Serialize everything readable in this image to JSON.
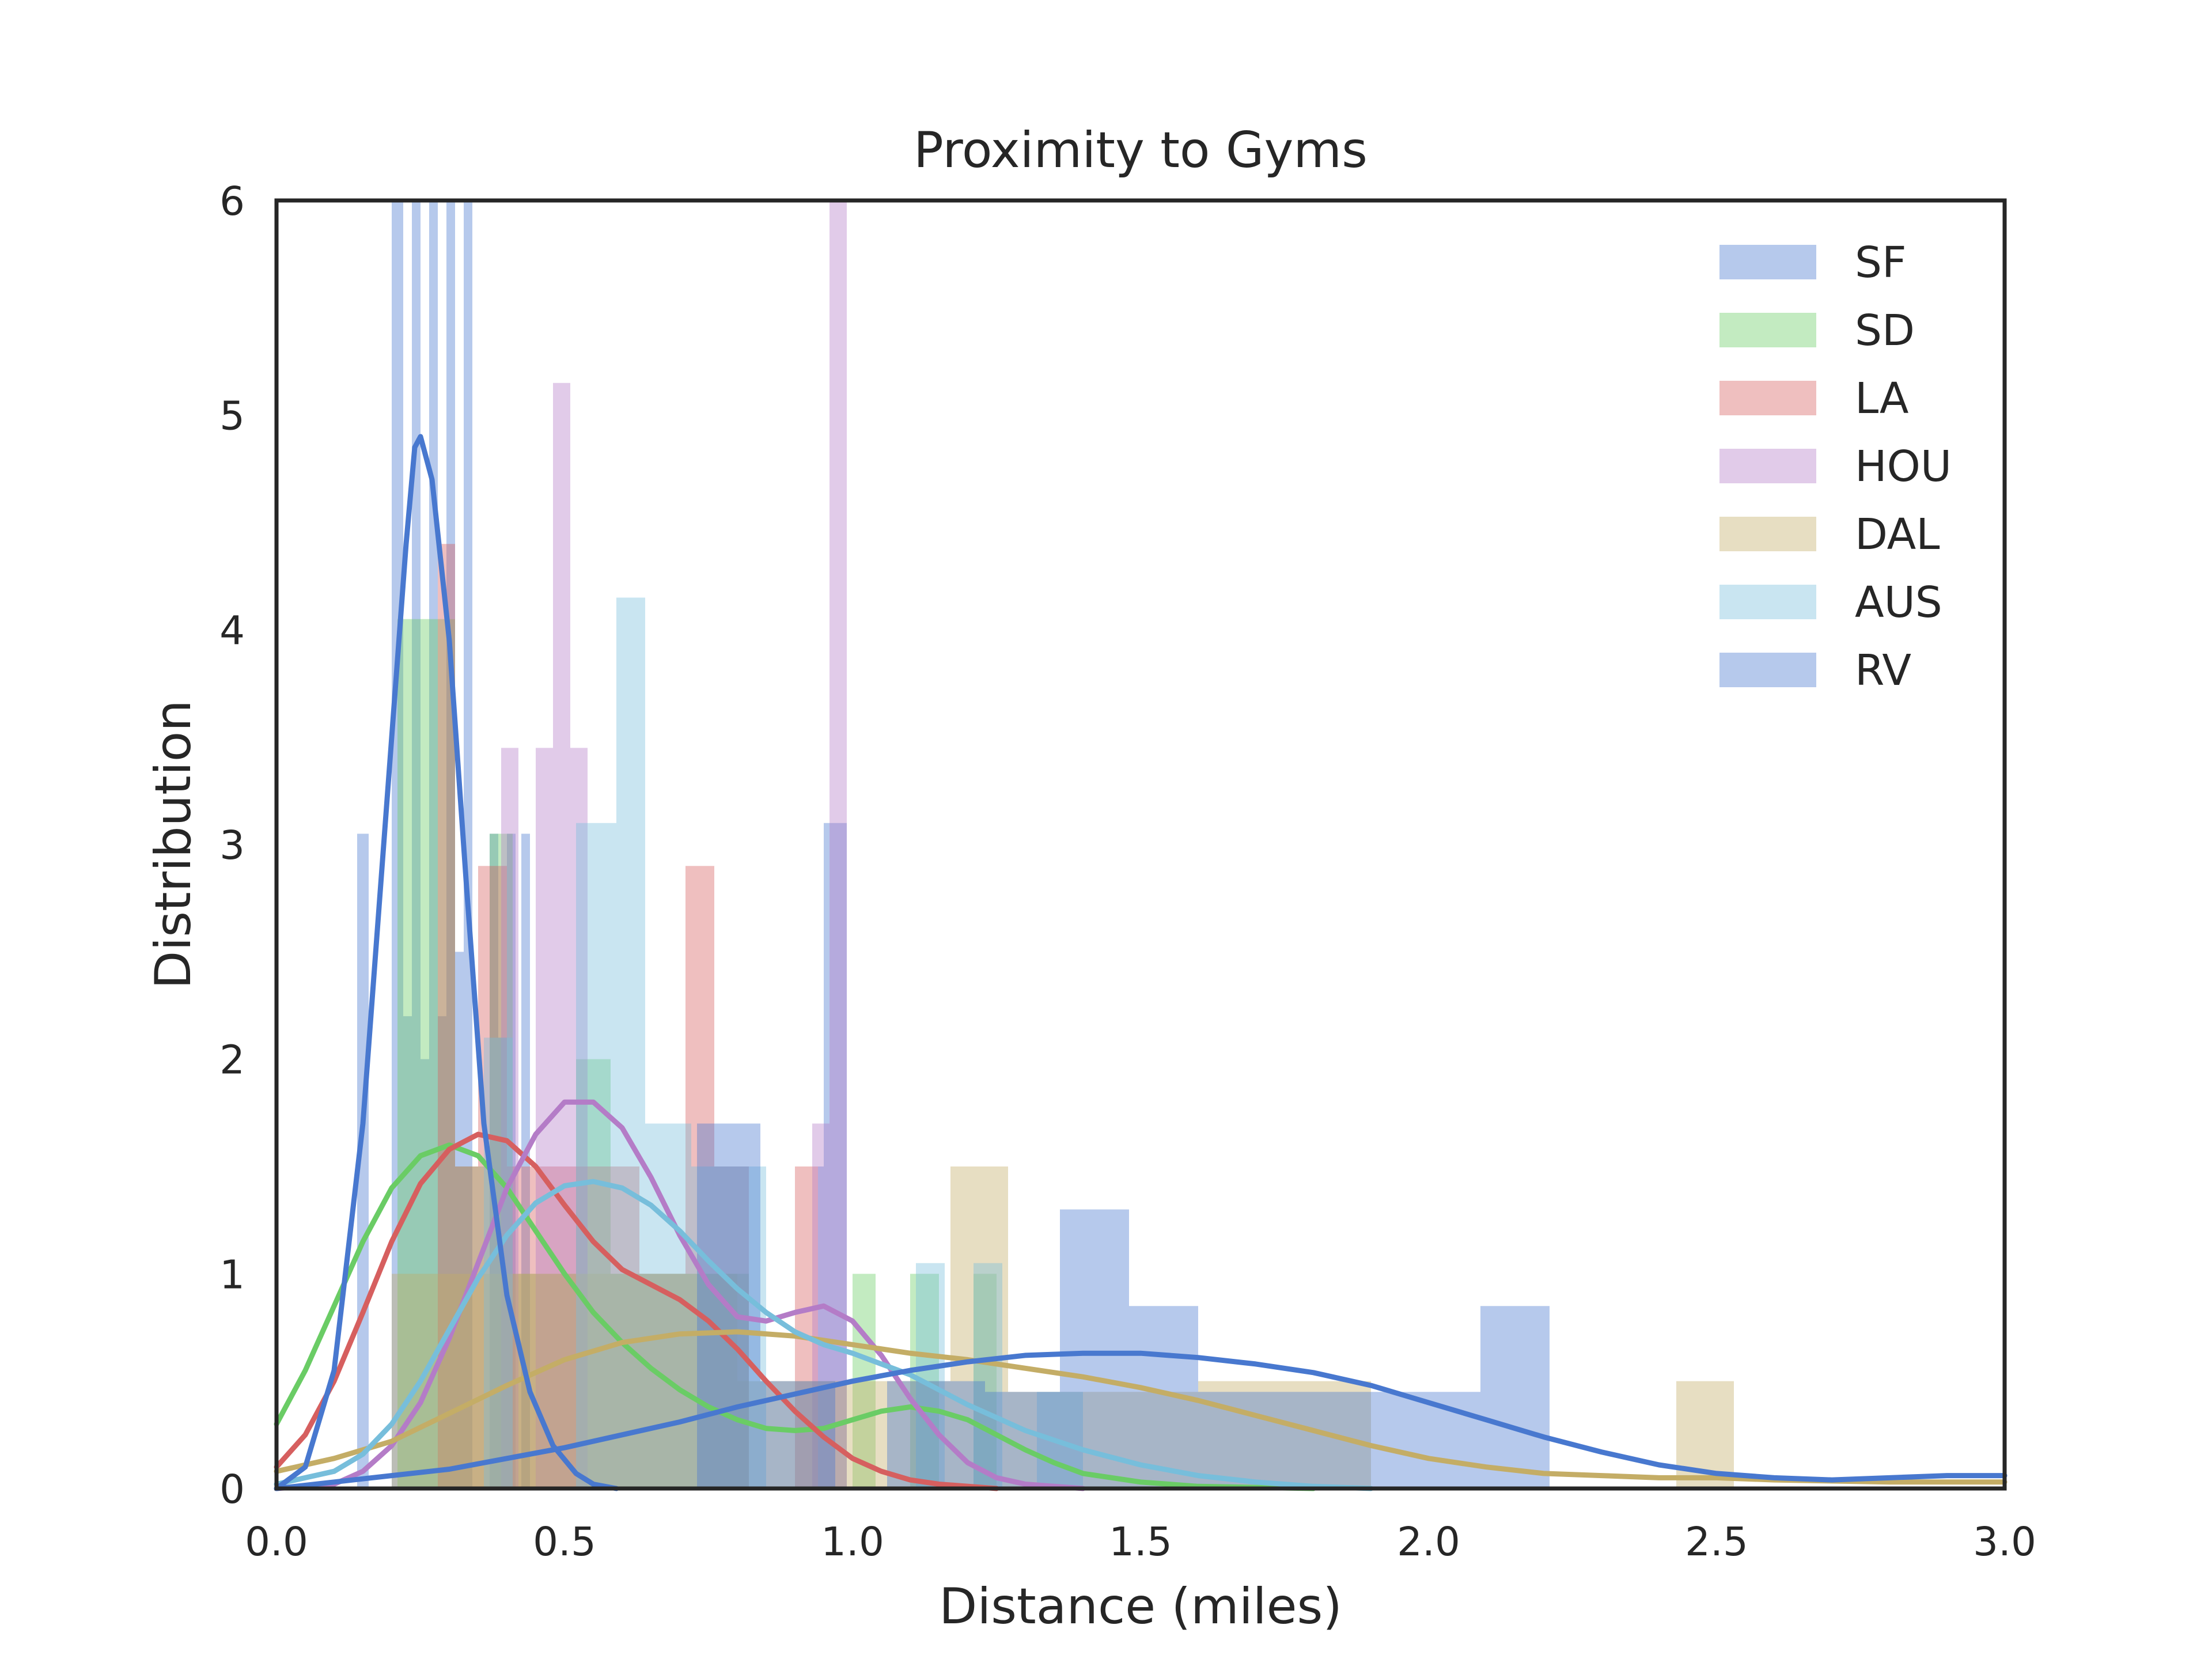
{
  "chart_data": {
    "type": "histogram",
    "title": "Proximity to Gyms",
    "xlabel": "Distance (miles)",
    "ylabel": "Distribution",
    "xlim": [
      0,
      3
    ],
    "ylim": [
      0,
      6
    ],
    "x_ticks": [
      "0.0",
      "0.5",
      "1.0",
      "1.5",
      "2.0",
      "2.5",
      "3.0"
    ],
    "y_ticks": [
      "0",
      "1",
      "2",
      "3",
      "4",
      "5",
      "6"
    ],
    "grid": false,
    "legend_position": "top-right",
    "series": [
      {
        "name": "SF",
        "color": "#4878cf",
        "bars": [
          [
            0.2,
            0.22,
            6.0
          ],
          [
            0.22,
            0.235,
            2.2
          ],
          [
            0.235,
            0.25,
            6.0
          ],
          [
            0.25,
            0.265,
            2.0
          ],
          [
            0.265,
            0.28,
            6.0
          ],
          [
            0.28,
            0.295,
            2.2
          ],
          [
            0.295,
            0.31,
            6.0
          ],
          [
            0.31,
            0.325,
            2.5
          ],
          [
            0.325,
            0.34,
            6.0
          ],
          [
            0.37,
            0.385,
            3.05
          ],
          [
            0.385,
            0.4,
            2.1
          ],
          [
            0.4,
            0.415,
            3.05
          ],
          [
            0.425,
            0.44,
            3.05
          ],
          [
            0.94,
            0.95,
            1.5
          ],
          [
            0.95,
            0.99,
            3.1
          ]
        ],
        "kde": null
      },
      {
        "name": "SD",
        "color": "#6acc65",
        "bars": [
          [
            0.21,
            0.31,
            4.05
          ],
          [
            0.31,
            0.37,
            1.5
          ],
          [
            0.37,
            0.41,
            3.05
          ],
          [
            0.41,
            0.46,
            1.0
          ],
          [
            0.46,
            0.52,
            1.0
          ],
          [
            0.52,
            0.58,
            2.0
          ],
          [
            0.58,
            0.64,
            1.0
          ],
          [
            0.64,
            0.7,
            1.0
          ],
          [
            0.7,
            0.76,
            1.0
          ],
          [
            0.76,
            0.82,
            1.0
          ],
          [
            1.0,
            1.04,
            1.0
          ],
          [
            1.1,
            1.15,
            1.0
          ],
          [
            1.21,
            1.25,
            1.0
          ]
        ],
        "kde": [
          [
            0,
            0.3
          ],
          [
            0.05,
            0.55
          ],
          [
            0.1,
            0.85
          ],
          [
            0.15,
            1.15
          ],
          [
            0.2,
            1.4
          ],
          [
            0.25,
            1.55
          ],
          [
            0.3,
            1.6
          ],
          [
            0.35,
            1.55
          ],
          [
            0.4,
            1.4
          ],
          [
            0.45,
            1.2
          ],
          [
            0.5,
            1.0
          ],
          [
            0.55,
            0.82
          ],
          [
            0.6,
            0.68
          ],
          [
            0.65,
            0.56
          ],
          [
            0.7,
            0.46
          ],
          [
            0.75,
            0.38
          ],
          [
            0.8,
            0.32
          ],
          [
            0.85,
            0.28
          ],
          [
            0.9,
            0.27
          ],
          [
            0.95,
            0.28
          ],
          [
            1.0,
            0.32
          ],
          [
            1.05,
            0.36
          ],
          [
            1.1,
            0.38
          ],
          [
            1.15,
            0.36
          ],
          [
            1.2,
            0.32
          ],
          [
            1.25,
            0.25
          ],
          [
            1.3,
            0.18
          ],
          [
            1.35,
            0.12
          ],
          [
            1.4,
            0.07
          ],
          [
            1.5,
            0.03
          ],
          [
            1.6,
            0.01
          ],
          [
            1.8,
            0.0
          ]
        ]
      },
      {
        "name": "LA",
        "color": "#d65f5f",
        "bars": [
          [
            0.28,
            0.31,
            4.4
          ],
          [
            0.31,
            0.35,
            1.5
          ],
          [
            0.35,
            0.4,
            2.9
          ],
          [
            0.4,
            0.45,
            1.5
          ],
          [
            0.45,
            0.53,
            1.5
          ],
          [
            0.53,
            0.58,
            1.5
          ],
          [
            0.58,
            0.63,
            1.5
          ],
          [
            0.63,
            0.71,
            1.0
          ],
          [
            0.71,
            0.76,
            2.9
          ],
          [
            0.76,
            0.82,
            1.5
          ],
          [
            0.9,
            0.94,
            1.5
          ]
        ],
        "kde": [
          [
            0,
            0.1
          ],
          [
            0.05,
            0.25
          ],
          [
            0.1,
            0.5
          ],
          [
            0.15,
            0.82
          ],
          [
            0.2,
            1.15
          ],
          [
            0.25,
            1.42
          ],
          [
            0.3,
            1.58
          ],
          [
            0.35,
            1.65
          ],
          [
            0.4,
            1.62
          ],
          [
            0.45,
            1.5
          ],
          [
            0.5,
            1.32
          ],
          [
            0.55,
            1.15
          ],
          [
            0.6,
            1.02
          ],
          [
            0.65,
            0.95
          ],
          [
            0.7,
            0.88
          ],
          [
            0.75,
            0.78
          ],
          [
            0.8,
            0.65
          ],
          [
            0.85,
            0.5
          ],
          [
            0.9,
            0.36
          ],
          [
            0.95,
            0.24
          ],
          [
            1.0,
            0.14
          ],
          [
            1.05,
            0.08
          ],
          [
            1.1,
            0.04
          ],
          [
            1.15,
            0.02
          ],
          [
            1.25,
            0.0
          ]
        ]
      },
      {
        "name": "HOU",
        "color": "#b47cc7",
        "bars": [
          [
            0.39,
            0.42,
            3.45
          ],
          [
            0.45,
            0.48,
            3.45
          ],
          [
            0.48,
            0.51,
            5.15
          ],
          [
            0.51,
            0.54,
            3.45
          ],
          [
            0.93,
            0.96,
            1.7
          ],
          [
            0.96,
            0.99,
            6.0
          ]
        ],
        "kde": [
          [
            0,
            0.0
          ],
          [
            0.1,
            0.02
          ],
          [
            0.15,
            0.08
          ],
          [
            0.2,
            0.2
          ],
          [
            0.25,
            0.4
          ],
          [
            0.3,
            0.7
          ],
          [
            0.35,
            1.05
          ],
          [
            0.4,
            1.4
          ],
          [
            0.45,
            1.65
          ],
          [
            0.5,
            1.8
          ],
          [
            0.55,
            1.8
          ],
          [
            0.6,
            1.68
          ],
          [
            0.65,
            1.45
          ],
          [
            0.7,
            1.18
          ],
          [
            0.75,
            0.95
          ],
          [
            0.8,
            0.8
          ],
          [
            0.85,
            0.78
          ],
          [
            0.9,
            0.82
          ],
          [
            0.95,
            0.85
          ],
          [
            1.0,
            0.78
          ],
          [
            1.05,
            0.62
          ],
          [
            1.1,
            0.42
          ],
          [
            1.15,
            0.25
          ],
          [
            1.2,
            0.12
          ],
          [
            1.25,
            0.05
          ],
          [
            1.3,
            0.02
          ],
          [
            1.4,
            0.0
          ]
        ]
      },
      {
        "name": "DAL",
        "color": "#c4ad66",
        "bars": [
          [
            0.2,
            0.3,
            1.0
          ],
          [
            0.3,
            0.4,
            1.0
          ],
          [
            0.4,
            0.5,
            1.0
          ],
          [
            0.5,
            0.6,
            1.0
          ],
          [
            0.6,
            0.7,
            1.0
          ],
          [
            0.7,
            0.8,
            1.0
          ],
          [
            0.8,
            0.9,
            0.5
          ],
          [
            0.9,
            1.0,
            0.5
          ],
          [
            1.0,
            1.1,
            0.5
          ],
          [
            1.1,
            1.17,
            0.5
          ],
          [
            1.17,
            1.27,
            1.5
          ],
          [
            1.27,
            1.4,
            0.45
          ],
          [
            1.4,
            1.6,
            0.45
          ],
          [
            1.6,
            1.9,
            0.5
          ],
          [
            2.43,
            2.53,
            0.5
          ]
        ],
        "kde": [
          [
            0,
            0.08
          ],
          [
            0.1,
            0.14
          ],
          [
            0.2,
            0.22
          ],
          [
            0.3,
            0.35
          ],
          [
            0.4,
            0.48
          ],
          [
            0.5,
            0.6
          ],
          [
            0.6,
            0.68
          ],
          [
            0.7,
            0.72
          ],
          [
            0.8,
            0.73
          ],
          [
            0.9,
            0.71
          ],
          [
            1.0,
            0.67
          ],
          [
            1.1,
            0.63
          ],
          [
            1.2,
            0.6
          ],
          [
            1.3,
            0.56
          ],
          [
            1.4,
            0.52
          ],
          [
            1.5,
            0.47
          ],
          [
            1.6,
            0.41
          ],
          [
            1.7,
            0.34
          ],
          [
            1.8,
            0.27
          ],
          [
            1.9,
            0.2
          ],
          [
            2.0,
            0.14
          ],
          [
            2.1,
            0.1
          ],
          [
            2.2,
            0.07
          ],
          [
            2.3,
            0.06
          ],
          [
            2.4,
            0.05
          ],
          [
            2.5,
            0.05
          ],
          [
            2.6,
            0.04
          ],
          [
            2.8,
            0.03
          ],
          [
            3.0,
            0.03
          ]
        ]
      },
      {
        "name": "AUS",
        "color": "#77bedb",
        "bars": [
          [
            0.36,
            0.41,
            2.1
          ],
          [
            0.52,
            0.59,
            3.1
          ],
          [
            0.59,
            0.64,
            4.15
          ],
          [
            0.64,
            0.72,
            1.7
          ],
          [
            0.72,
            0.79,
            1.5
          ],
          [
            0.79,
            0.85,
            1.5
          ],
          [
            1.11,
            1.16,
            1.05
          ],
          [
            1.21,
            1.26,
            1.05
          ],
          [
            1.32,
            1.4,
            0.45
          ]
        ],
        "kde": [
          [
            0,
            0.02
          ],
          [
            0.1,
            0.08
          ],
          [
            0.15,
            0.16
          ],
          [
            0.2,
            0.3
          ],
          [
            0.25,
            0.5
          ],
          [
            0.3,
            0.74
          ],
          [
            0.35,
            0.98
          ],
          [
            0.4,
            1.18
          ],
          [
            0.45,
            1.33
          ],
          [
            0.5,
            1.41
          ],
          [
            0.55,
            1.43
          ],
          [
            0.6,
            1.4
          ],
          [
            0.65,
            1.32
          ],
          [
            0.7,
            1.2
          ],
          [
            0.75,
            1.06
          ],
          [
            0.8,
            0.93
          ],
          [
            0.85,
            0.82
          ],
          [
            0.9,
            0.73
          ],
          [
            0.95,
            0.67
          ],
          [
            1.0,
            0.63
          ],
          [
            1.05,
            0.58
          ],
          [
            1.1,
            0.53
          ],
          [
            1.15,
            0.46
          ],
          [
            1.2,
            0.39
          ],
          [
            1.25,
            0.33
          ],
          [
            1.3,
            0.27
          ],
          [
            1.4,
            0.18
          ],
          [
            1.5,
            0.11
          ],
          [
            1.6,
            0.06
          ],
          [
            1.7,
            0.03
          ],
          [
            1.8,
            0.01
          ],
          [
            1.9,
            0.0
          ]
        ]
      },
      {
        "name": "RV",
        "color": "#4878cf",
        "bars": [
          [
            0.14,
            0.16,
            3.05
          ],
          [
            0.73,
            0.84,
            1.7
          ],
          [
            0.84,
            0.97,
            0.5
          ],
          [
            1.06,
            1.23,
            0.5
          ],
          [
            1.23,
            1.36,
            0.45
          ],
          [
            1.36,
            1.48,
            1.3
          ],
          [
            1.48,
            1.6,
            0.85
          ],
          [
            1.6,
            1.73,
            0.45
          ],
          [
            1.73,
            1.85,
            0.45
          ],
          [
            1.85,
            1.97,
            0.45
          ],
          [
            1.97,
            2.09,
            0.45
          ],
          [
            2.09,
            2.21,
            0.85
          ]
        ],
        "kde": [
          [
            0,
            0.0
          ],
          [
            0.1,
            0.03
          ],
          [
            0.2,
            0.06
          ],
          [
            0.3,
            0.09
          ],
          [
            0.4,
            0.14
          ],
          [
            0.5,
            0.19
          ],
          [
            0.6,
            0.25
          ],
          [
            0.7,
            0.31
          ],
          [
            0.8,
            0.38
          ],
          [
            0.9,
            0.44
          ],
          [
            1.0,
            0.5
          ],
          [
            1.1,
            0.55
          ],
          [
            1.2,
            0.59
          ],
          [
            1.3,
            0.62
          ],
          [
            1.4,
            0.63
          ],
          [
            1.5,
            0.63
          ],
          [
            1.6,
            0.61
          ],
          [
            1.7,
            0.58
          ],
          [
            1.8,
            0.54
          ],
          [
            1.9,
            0.48
          ],
          [
            2.0,
            0.4
          ],
          [
            2.1,
            0.32
          ],
          [
            2.2,
            0.24
          ],
          [
            2.3,
            0.17
          ],
          [
            2.4,
            0.11
          ],
          [
            2.5,
            0.07
          ],
          [
            2.6,
            0.05
          ],
          [
            2.7,
            0.04
          ],
          [
            2.8,
            0.05
          ],
          [
            2.9,
            0.06
          ],
          [
            3.0,
            0.06
          ]
        ]
      },
      {
        "name": "",
        "color": "#4878cf",
        "bars": [],
        "kde": [
          [
            0.0,
            0.0
          ],
          [
            0.05,
            0.1
          ],
          [
            0.1,
            0.55
          ],
          [
            0.15,
            1.7
          ],
          [
            0.2,
            3.5
          ],
          [
            0.225,
            4.4
          ],
          [
            0.24,
            4.85
          ],
          [
            0.25,
            4.9
          ],
          [
            0.27,
            4.7
          ],
          [
            0.3,
            3.95
          ],
          [
            0.33,
            2.8
          ],
          [
            0.36,
            1.7
          ],
          [
            0.4,
            0.9
          ],
          [
            0.44,
            0.45
          ],
          [
            0.48,
            0.2
          ],
          [
            0.52,
            0.07
          ],
          [
            0.55,
            0.02
          ],
          [
            0.59,
            0.0
          ]
        ]
      }
    ]
  }
}
